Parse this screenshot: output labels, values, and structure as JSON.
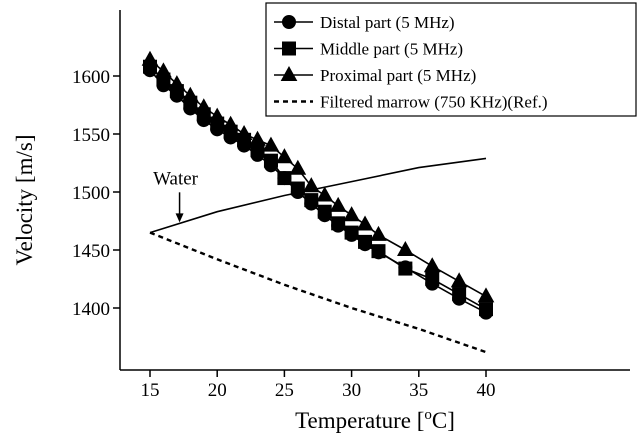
{
  "chart_data": {
    "type": "line",
    "xlabel": "Temperature [",
    "xlabel_sup": "o",
    "xlabel_end": "C]",
    "ylabel": "Velocity [m/s]",
    "xlim": [
      15,
      40
    ],
    "ylim": [
      1350,
      1650
    ],
    "x_ticks": [
      15,
      20,
      25,
      30,
      35,
      40
    ],
    "y_ticks": [
      1400,
      1450,
      1500,
      1550,
      1600
    ],
    "x_tick_labels": [
      "15",
      "20",
      "25",
      "30",
      "35",
      "40"
    ],
    "y_tick_labels": [
      "1400",
      "1450",
      "1500",
      "1550",
      "1600"
    ],
    "legend_position": "top-right",
    "grid": false,
    "series": [
      {
        "name": "Distal part (5 MHz)",
        "marker": "circle",
        "line": "solid",
        "x": [
          15,
          16,
          17,
          18,
          19,
          20,
          21,
          22,
          23,
          24,
          25,
          26,
          27,
          28,
          29,
          30,
          31,
          32,
          34,
          36,
          38,
          40
        ],
        "y": [
          1605,
          1592,
          1583,
          1572,
          1562,
          1554,
          1547,
          1540,
          1532,
          1523,
          1512,
          1500,
          1490,
          1480,
          1471,
          1463,
          1455,
          1448,
          1435,
          1421,
          1408,
          1396
        ]
      },
      {
        "name": "Middle part (5 MHz)",
        "marker": "square",
        "line": "solid",
        "x": [
          15,
          16,
          17,
          18,
          19,
          20,
          21,
          22,
          23,
          24,
          25,
          26,
          27,
          28,
          29,
          30,
          31,
          32,
          34,
          36,
          38,
          40
        ],
        "y": [
          1608,
          1597,
          1587,
          1577,
          1567,
          1559,
          1552,
          1545,
          1536,
          1527,
          1512,
          1503,
          1493,
          1483,
          1473,
          1465,
          1457,
          1449,
          1434,
          1425,
          1412,
          1399
        ]
      },
      {
        "name": "Proximal part (5 MHz)",
        "marker": "triangle",
        "line": "solid",
        "x": [
          15,
          16,
          17,
          18,
          19,
          20,
          21,
          22,
          23,
          24,
          25,
          26,
          27,
          28,
          29,
          30,
          31,
          32,
          34,
          36,
          38,
          40
        ],
        "y": [
          1614,
          1604,
          1593,
          1583,
          1573,
          1565,
          1558,
          1550,
          1545,
          1540,
          1530,
          1520,
          1505,
          1497,
          1488,
          1480,
          1472,
          1463,
          1450,
          1436,
          1423,
          1410
        ]
      },
      {
        "name": "Filtered marrow (750 KHz)(Ref.)",
        "marker": "none",
        "line": "dashed",
        "x": [
          15,
          20,
          25,
          30,
          35,
          40
        ],
        "y": [
          1465,
          1442,
          1420,
          1400,
          1382,
          1362
        ]
      },
      {
        "name": "Water",
        "marker": "none",
        "line": "solid",
        "legend": false,
        "x": [
          15,
          20,
          25,
          30,
          35,
          40
        ],
        "y": [
          1465,
          1483,
          1497,
          1509,
          1521,
          1529
        ]
      }
    ],
    "annotations": [
      {
        "text": "Water",
        "arrow_to": [
          17.2,
          1473
        ]
      }
    ]
  }
}
